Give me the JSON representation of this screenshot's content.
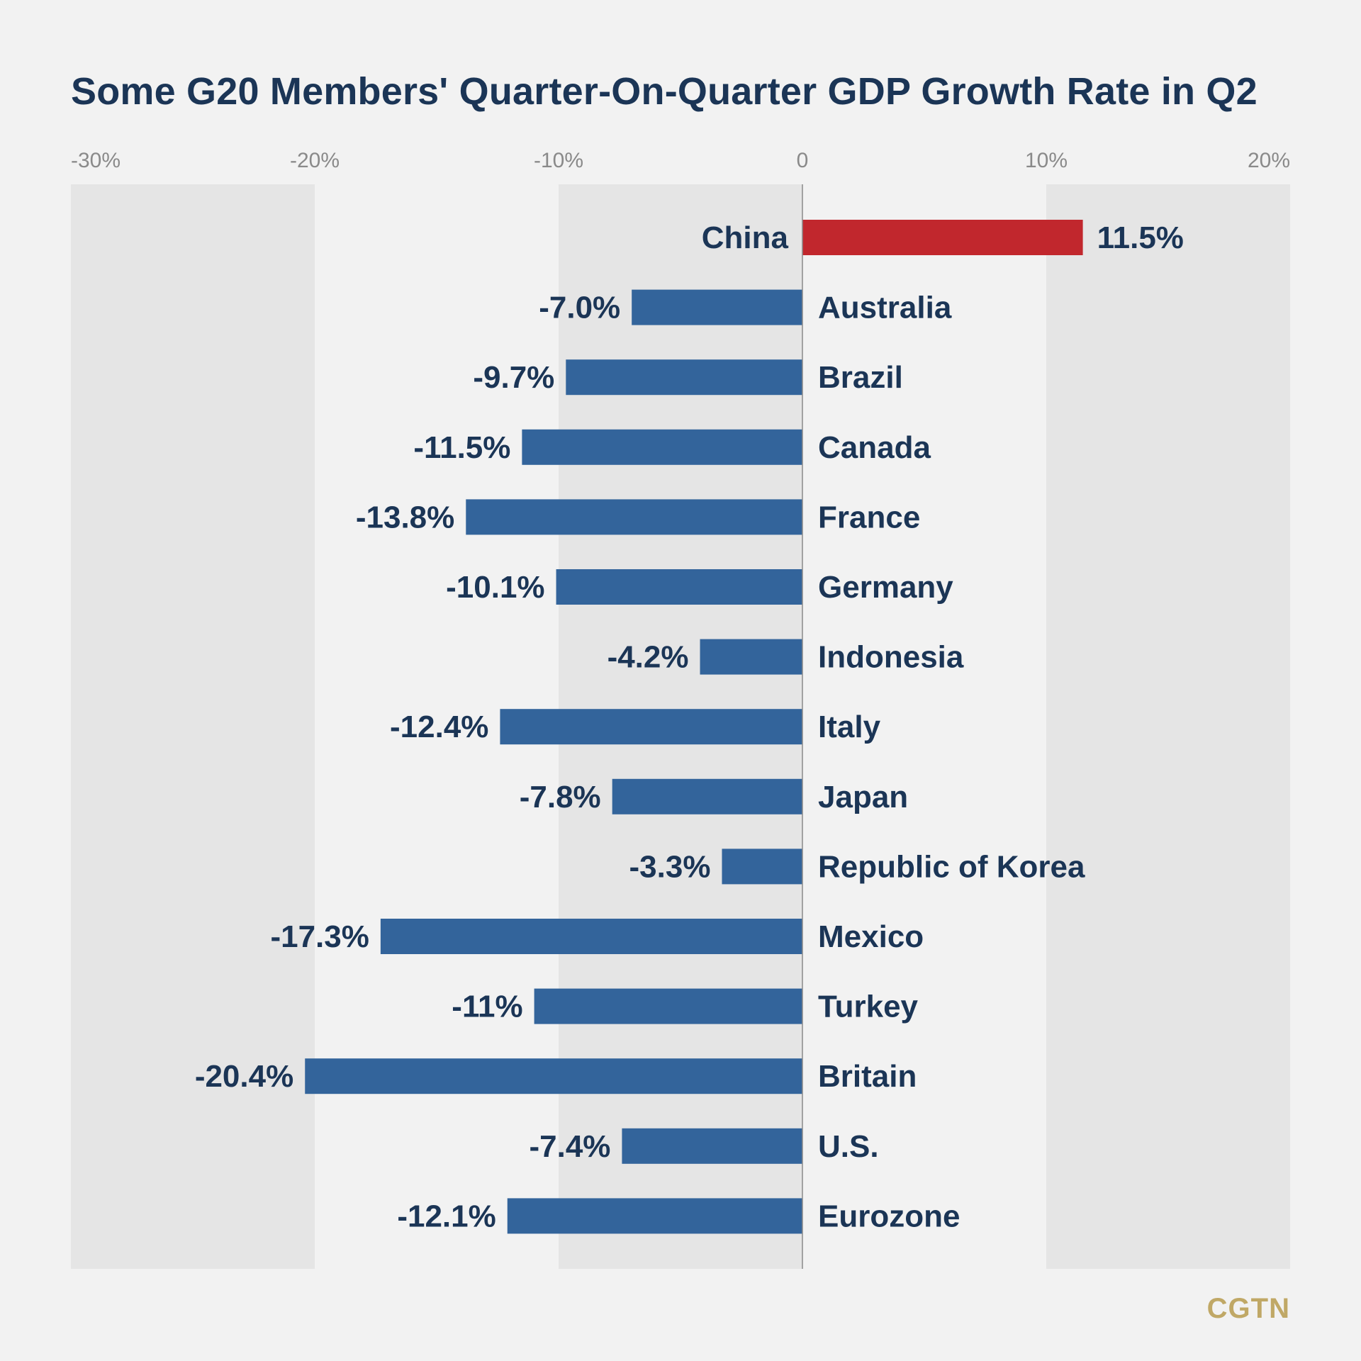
{
  "chart_data": {
    "type": "bar",
    "orientation": "horizontal",
    "title": "Some G20 Members' Quarter-On-Quarter GDP Growth Rate in Q2",
    "xlim": [
      -30,
      20
    ],
    "x_ticks": [
      -30,
      -20,
      -10,
      0,
      10,
      20
    ],
    "x_tick_labels": [
      "-30%",
      "-20%",
      "-10%",
      "0",
      "10%",
      "20%"
    ],
    "alternating_bands": true,
    "categories": [
      "China",
      "Australia",
      "Brazil",
      "Canada",
      "France",
      "Germany",
      "Indonesia",
      "Italy",
      "Japan",
      "Republic of Korea",
      "Mexico",
      "Turkey",
      "Britain",
      "U.S.",
      "Eurozone"
    ],
    "values": [
      11.5,
      -7.0,
      -9.7,
      -11.5,
      -13.8,
      -10.1,
      -4.2,
      -12.4,
      -7.8,
      -3.3,
      -17.3,
      -11,
      -20.4,
      -7.4,
      -12.1
    ],
    "value_labels": [
      "11.5%",
      "-7.0%",
      "-9.7%",
      "-11.5%",
      "-13.8%",
      "-10.1%",
      "-4.2%",
      "-12.4%",
      "-7.8%",
      "-3.3%",
      "-17.3%",
      "-11%",
      "-20.4%",
      "-7.4%",
      "-12.1%"
    ],
    "colors": {
      "highlight": "#c1272d",
      "default": "#33649b",
      "band": "#e5e5e5",
      "text": "#1b3556",
      "tick": "#8a8a8a"
    }
  },
  "logo": "CGTN"
}
